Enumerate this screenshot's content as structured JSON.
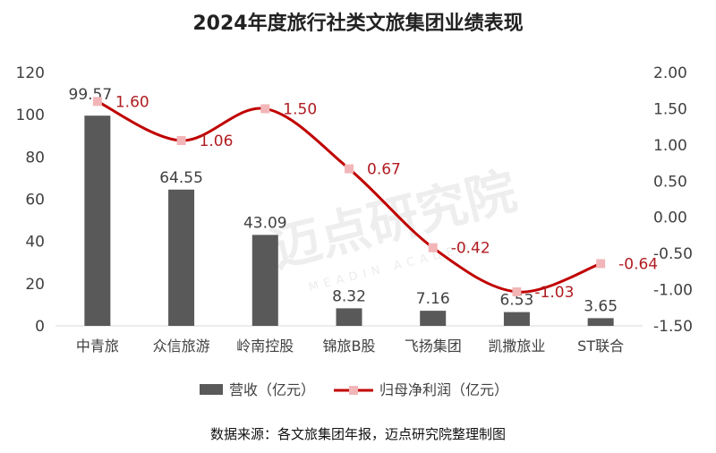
{
  "title": "2024年度旅行社类文旅集团业绩表现",
  "source_note": "数据来源：各文旅集团年报，迈点研究院整理制图",
  "watermark": {
    "main": "迈点研究院",
    "sub": "MEADIN ACADEMY"
  },
  "chart_data": {
    "type": "bar",
    "categories": [
      "中青旅",
      "众信旅游",
      "岭南控股",
      "锦旅B股",
      "飞扬集团",
      "凯撒旅业",
      "ST联合"
    ],
    "series": [
      {
        "name": "营收（亿元）",
        "type": "bar",
        "axis": "left",
        "color": "#595959",
        "values": [
          99.57,
          64.55,
          43.09,
          8.32,
          7.16,
          6.53,
          3.65
        ],
        "labels": [
          "99.57",
          "64.55",
          "43.09",
          "8.32",
          "7.16",
          "6.53",
          "3.65"
        ]
      },
      {
        "name": "归母净利润（亿元）",
        "type": "line",
        "axis": "right",
        "color": "#c00000",
        "marker_color": "#f2b6b8",
        "values": [
          1.6,
          1.06,
          1.5,
          0.67,
          -0.42,
          -1.03,
          -0.64
        ],
        "labels": [
          "1.60",
          "1.06",
          "1.50",
          "0.67",
          "-0.42",
          "-1.03",
          "-0.64"
        ]
      }
    ],
    "y_left": {
      "min": 0,
      "max": 120,
      "ticks": [
        "0",
        "20",
        "40",
        "60",
        "80",
        "100",
        "120"
      ]
    },
    "y_right": {
      "min": -1.5,
      "max": 2.0,
      "ticks": [
        "-1.50",
        "-1.00",
        "-0.50",
        "0.00",
        "0.50",
        "1.00",
        "1.50",
        "2.00"
      ]
    },
    "grid": false,
    "legend_position": "bottom"
  }
}
